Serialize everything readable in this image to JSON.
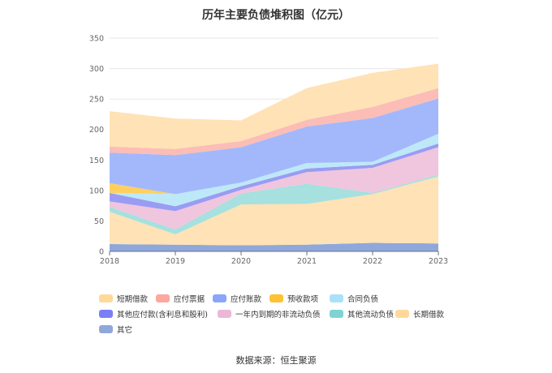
{
  "chart_data": {
    "type": "area",
    "stacked": true,
    "title": "历年主要负债堆积图（亿元）",
    "source": "数据来源：恒生聚源",
    "categories": [
      "2018",
      "2019",
      "2020",
      "2021",
      "2022",
      "2023"
    ],
    "ylim": [
      0,
      350
    ],
    "yticks": [
      "0",
      "50",
      "100",
      "150",
      "200",
      "250",
      "300",
      "350"
    ],
    "legend_position": "bottom",
    "series": [
      {
        "name": "其它",
        "color": "#8fa8db",
        "values": [
          12,
          11,
          10,
          11,
          14,
          13
        ]
      },
      {
        "name": "长期借款",
        "color": "#ffe2b5",
        "values": [
          53,
          17,
          67,
          67,
          80,
          110
        ]
      },
      {
        "name": "其他流动负债",
        "color": "#a6e0df",
        "values": [
          8,
          8,
          18,
          33,
          2,
          3
        ]
      },
      {
        "name": "一年内到期的非流动负债",
        "color": "#efc6de",
        "values": [
          9,
          30,
          6,
          19,
          41,
          45
        ]
      },
      {
        "name": "其他应付款(含利息和股利)",
        "color": "#9a9cf3",
        "values": [
          14,
          8,
          6,
          6,
          5,
          6
        ]
      },
      {
        "name": "合同负债",
        "color": "#bde8f8",
        "values": [
          0,
          20,
          6,
          9,
          5,
          16
        ]
      },
      {
        "name": "预收款项",
        "color": "#ffd060",
        "values": [
          16,
          0,
          0,
          0,
          0,
          0
        ]
      },
      {
        "name": "应付账款",
        "color": "#a3b8fb",
        "values": [
          50,
          64,
          58,
          60,
          72,
          58
        ]
      },
      {
        "name": "应付票据",
        "color": "#fbbdb6",
        "values": [
          10,
          10,
          10,
          11,
          18,
          17
        ]
      },
      {
        "name": "短期借款",
        "color": "#ffe2b5",
        "values": [
          58,
          50,
          34,
          52,
          56,
          40
        ]
      }
    ],
    "legend": [
      {
        "name": "短期借款",
        "color": "#ffd99a"
      },
      {
        "name": "应付票据",
        "color": "#fda79f"
      },
      {
        "name": "应付账款",
        "color": "#8aa5fa"
      },
      {
        "name": "预收款项",
        "color": "#ffc234"
      },
      {
        "name": "合同负债",
        "color": "#a9e1f8"
      },
      {
        "name": "其他应付款(含利息和股利)",
        "color": "#7b7ef4"
      },
      {
        "name": "一年内到期的非流动负债",
        "color": "#eab8d6"
      },
      {
        "name": "其他流动负债",
        "color": "#7fd3d2"
      },
      {
        "name": "长期借款",
        "color": "#ffd99a"
      },
      {
        "name": "其它",
        "color": "#8fa8db"
      }
    ]
  }
}
